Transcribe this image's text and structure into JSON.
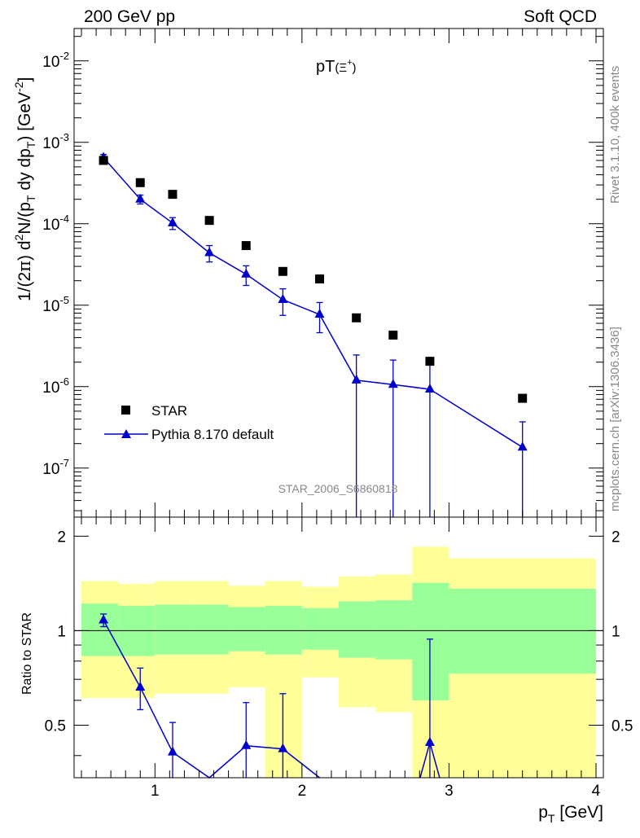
{
  "header": {
    "left": "200 GeV pp",
    "right": "Soft QCD"
  },
  "side_labels": {
    "rivet": "Rivet 3.1.10,  400k events",
    "mcplots": "mcplots.cern.ch [arXiv:1306.3436]"
  },
  "main_plot": {
    "title": "pT(Ξ⁺)",
    "title_main": "pT",
    "title_sub": "(Ξ",
    "title_sup": "+",
    "title_end": ")",
    "ylabel": "1/(2π) d²N/(p_T dy dp_T) [GeV⁻²]",
    "ylabel_a": "1/(2",
    "ylabel_pi": "π",
    "ylabel_b": ") d",
    "ylabel_sup2": "2",
    "ylabel_c": "N/(p",
    "ylabel_subT": "T",
    "ylabel_d": " dy dp",
    "ylabel_subT2": "T",
    "ylabel_e": ") [GeV",
    "ylabel_supm2": "-2",
    "ylabel_f": "]",
    "analysis_id": "STAR_2006_S6860818",
    "legend": {
      "data_label": "STAR",
      "mc_label": "Pythia 8.170 default"
    },
    "ytick_labels": [
      {
        "value": 0.01,
        "base": "10",
        "exp": "-2"
      },
      {
        "value": 0.001,
        "base": "10",
        "exp": "-3"
      },
      {
        "value": 0.0001,
        "base": "10",
        "exp": "-4"
      },
      {
        "value": 1e-05,
        "base": "10",
        "exp": "-5"
      },
      {
        "value": 1e-06,
        "base": "10",
        "exp": "-6"
      },
      {
        "value": 1e-07,
        "base": "10",
        "exp": "-7"
      }
    ]
  },
  "ratio_plot": {
    "ylabel": "Ratio to STAR",
    "ytick_labels": [
      "2",
      "1",
      "0.5"
    ]
  },
  "xaxis": {
    "label": "p_T [GeV]",
    "label_main": "p",
    "label_sub": "T",
    "label_unit": " [GeV]",
    "tick_labels": [
      "1",
      "2",
      "3",
      "4"
    ]
  },
  "colors": {
    "data": "#000000",
    "mc": "#0000cc",
    "band_inner": "#99ff99",
    "band_outer": "#ffff99",
    "side_text": "#888888"
  },
  "chart_data": {
    "type": "scatter",
    "title": "pT(Ξ⁺)",
    "xlabel": "p_T [GeV]",
    "ylabel": "1/(2π) d²N/(p_T dy dp_T) [GeV⁻²]",
    "xlim": [
      0.45,
      4.05
    ],
    "ylim": [
      2.5e-08,
      0.025
    ],
    "yscale": "log",
    "ratio_ylim": [
      0.34,
      2.3
    ],
    "bin_edges": [
      0.5,
      0.75,
      1.0,
      1.25,
      1.5,
      1.75,
      2.0,
      2.25,
      2.5,
      2.75,
      3.0,
      4.0
    ],
    "data": {
      "name": "STAR",
      "x": [
        0.65,
        0.9,
        1.12,
        1.37,
        1.62,
        1.87,
        2.12,
        2.37,
        2.62,
        2.87,
        3.5
      ],
      "y": [
        0.0006,
        0.00032,
        0.00023,
        0.00011,
        5.4e-05,
        2.6e-05,
        2.1e-05,
        7e-06,
        4.3e-06,
        2.05e-06,
        7.2e-07
      ]
    },
    "mc": {
      "name": "Pythia 8.170 default",
      "x": [
        0.65,
        0.9,
        1.12,
        1.37,
        1.62,
        1.87,
        2.12,
        2.37,
        2.62,
        2.87,
        3.5
      ],
      "y": [
        0.00065,
        0.0002,
        0.000102,
        4.4e-05,
        2.4e-05,
        1.17e-05,
        7.7e-06,
        1.2e-06,
        1.06e-06,
        9.3e-07,
        1.8e-07
      ],
      "err_low": [
        6e-05,
        2.5e-05,
        1.7e-05,
        1e-05,
        6.5e-06,
        4.2e-06,
        3.1e-06,
        1.2e-06,
        1.06e-06,
        9.3e-07,
        1.8e-07
      ],
      "err_high": [
        6e-05,
        2.5e-05,
        1.7e-05,
        1e-05,
        6.5e-06,
        4.2e-06,
        3.1e-06,
        1.25e-06,
        1.06e-06,
        9.3e-07,
        1.9e-07
      ]
    },
    "ratio": {
      "name": "Pythia 8.170 default / STAR",
      "x": [
        0.65,
        0.9,
        1.12,
        1.37,
        1.62,
        1.87,
        2.12,
        2.87
      ],
      "y": [
        1.08,
        0.66,
        0.41,
        0.33,
        0.43,
        0.42,
        0.3,
        0.44
      ],
      "err_low": [
        0.05,
        0.1,
        0.1,
        0.0,
        0.15,
        0.18,
        0.0,
        0.44
      ],
      "err_high": [
        0.05,
        0.1,
        0.1,
        0.0,
        0.16,
        0.21,
        0.0,
        0.5
      ]
    },
    "bands": {
      "inner_low": [
        0.83,
        0.83,
        0.84,
        0.84,
        0.86,
        0.84,
        0.87,
        0.82,
        0.81,
        0.6,
        0.73
      ],
      "inner_high": [
        1.22,
        1.2,
        1.21,
        1.21,
        1.19,
        1.2,
        1.18,
        1.24,
        1.25,
        1.42,
        1.36
      ],
      "outer_low": [
        0.61,
        0.61,
        0.63,
        0.63,
        0.66,
        0.3,
        0.71,
        0.57,
        0.55,
        0.3,
        0.3
      ],
      "outer_high": [
        1.44,
        1.41,
        1.44,
        1.44,
        1.39,
        1.44,
        1.38,
        1.49,
        1.51,
        1.85,
        1.7
      ]
    }
  }
}
